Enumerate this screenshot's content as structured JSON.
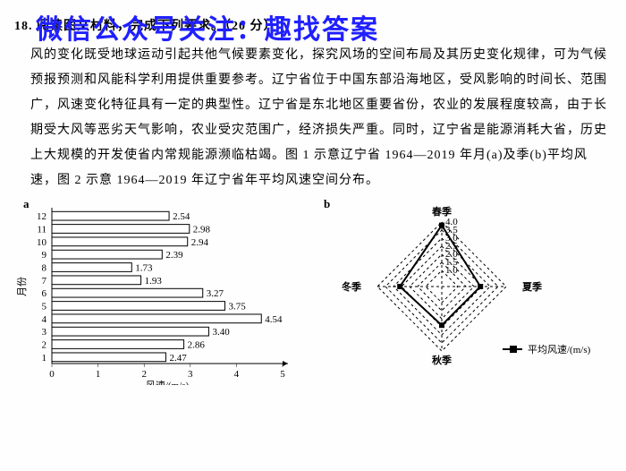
{
  "watermark": "微信公众号关注：趣找答案",
  "question_header": "18. 阅读图文材料，完成下列要求。（20 分）",
  "paragraph": "风的变化既受地球运动引起共他气候要素变化，探究风场的空间布局及其历史变化规律，可为气候预报预测和风能科学利用提供重要参考。辽宁省位于中国东部沿海地区，受风影响的时间长、范围广，风速变化特征具有一定的典型性。辽宁省是东北地区重要省份，农业的发展程度较高，由于长期受大风等恶劣天气影响，农业受灾范围广，经济损失严重。同时，辽宁省是能源消耗大省，历史上大规模的开发使省内常规能源濒临枯竭。图 1 示意辽宁省 1964—2019 年月(a)及季(b)平均风速，图 2 示意 1964—2019 年辽宁省年平均风速空间分布。",
  "chartA": {
    "label": "a",
    "type": "horizontal-bar",
    "ylabel": "月份",
    "xlabel": "风速/(m/s)",
    "xlim": [
      0,
      5
    ],
    "xtick_step": 1,
    "categories": [
      "1",
      "2",
      "3",
      "4",
      "5",
      "6",
      "7",
      "8",
      "9",
      "10",
      "11",
      "12"
    ],
    "values": [
      2.47,
      2.86,
      3.4,
      4.54,
      3.75,
      3.27,
      1.93,
      1.73,
      2.39,
      2.94,
      2.98,
      2.54
    ],
    "bar_color": "#ffffff",
    "bar_border": "#000000",
    "label_fontsize": 11
  },
  "chartB": {
    "label": "b",
    "type": "radar",
    "axes": [
      "春季",
      "夏季",
      "秋季",
      "冬季"
    ],
    "rticks": [
      1.0,
      1.5,
      2.0,
      2.5,
      3.0,
      3.5,
      4.0
    ],
    "rmax": 4.0,
    "values": {
      "春季": 3.8,
      "夏季": 2.4,
      "秋季": 2.4,
      "冬季": 2.6
    },
    "legend": "平均风速/(m/s)",
    "grid_color": "#000000",
    "marker_color": "#000000",
    "marker_size": 6
  }
}
